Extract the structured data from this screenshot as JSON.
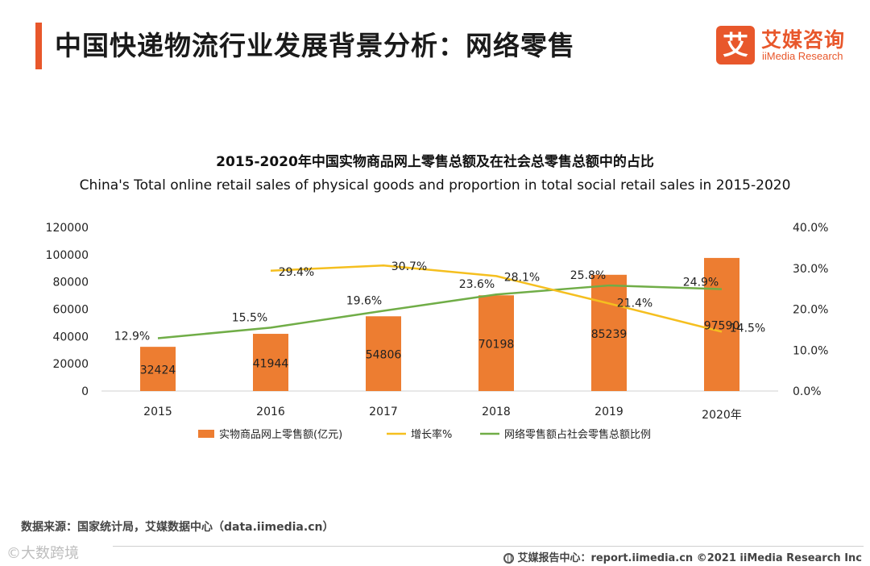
{
  "header": {
    "title": "中国快递物流行业发展背景分析：网络零售",
    "logo_mark": "艾",
    "logo_cn": "艾媒咨询",
    "logo_en": "iiMedia Research"
  },
  "chart_data": {
    "type": "bar+line",
    "title": "2015-2020年中国实物商品网上零售总额及在社会总零售总额中的占比",
    "subtitle": "China's Total online retail sales of physical goods and proportion in total social retail sales in 2015-2020",
    "categories": [
      "2015",
      "2016",
      "2017",
      "2018",
      "2019",
      "2020年"
    ],
    "bar_series": {
      "name": "实物商品网上零售额(亿元)",
      "values": [
        32424,
        41944,
        54806,
        70198,
        85239,
        97590
      ],
      "labels": [
        "32424",
        "41944",
        "54806",
        "70198",
        "85239",
        "97590"
      ],
      "color": "#ed7d31"
    },
    "growth_series": {
      "name": "增长率%",
      "values": [
        null,
        29.4,
        30.7,
        28.1,
        21.4,
        14.5
      ],
      "labels": [
        "",
        "29.4%",
        "30.7%",
        "28.1%",
        "21.4%",
        "14.5%"
      ],
      "color": "#f5bf1f"
    },
    "share_series": {
      "name": "网络零售额占社会零售总额比例",
      "values": [
        12.9,
        15.5,
        19.6,
        23.6,
        25.8,
        24.9
      ],
      "labels": [
        "12.9%",
        "15.5%",
        "19.6%",
        "23.6%",
        "25.8%",
        "24.9%"
      ],
      "color": "#70ad47"
    },
    "y_left": {
      "min": 0,
      "max": 120000,
      "ticks": [
        "0",
        "20000",
        "40000",
        "60000",
        "80000",
        "100000",
        "120000"
      ]
    },
    "y_right": {
      "min": 0,
      "max": 40,
      "ticks": [
        "0.0%",
        "10.0%",
        "20.0%",
        "30.0%",
        "40.0%"
      ]
    },
    "legend_position": "bottom"
  },
  "footer": {
    "source": "数据来源：国家统计局，艾媒数据中心（data.iimedia.cn）",
    "watermark": "©大数跨境",
    "report": "艾媒报告中心：report.iimedia.cn   ©2021  iiMedia Research  Inc"
  }
}
